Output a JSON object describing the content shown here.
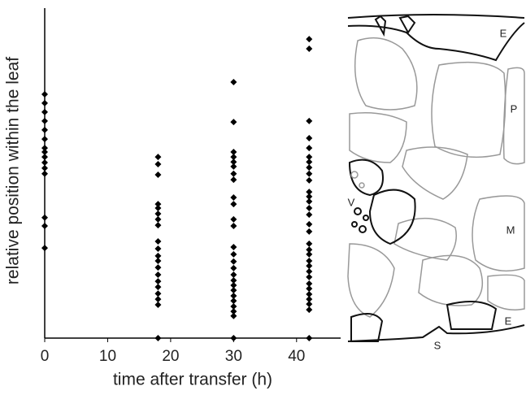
{
  "chart_data": {
    "type": "scatter",
    "xlabel": "time after transfer (h)",
    "ylabel": "relative position within the leaf",
    "xlim": [
      0,
      47
    ],
    "xticks": [
      0,
      10,
      20,
      30,
      40
    ],
    "ylim": [
      0,
      1
    ],
    "series": [
      {
        "color": "#000000",
        "x": [
          0,
          0,
          0,
          0,
          0,
          0,
          0,
          0,
          0,
          0,
          0,
          0,
          0,
          0,
          0,
          18,
          18,
          18,
          18,
          18,
          18,
          18,
          18,
          18,
          18,
          18,
          18,
          18,
          18,
          18,
          18,
          18,
          18,
          18,
          18,
          30,
          30,
          30,
          30,
          30,
          30,
          30,
          30,
          30,
          30,
          30,
          30,
          30,
          30,
          30,
          30,
          30,
          30,
          30,
          30,
          30,
          30,
          30,
          30,
          30,
          30,
          42,
          42,
          42,
          42,
          42,
          42,
          42,
          42,
          42,
          42,
          42,
          42,
          42,
          42,
          42,
          42,
          42,
          42,
          42,
          42,
          42,
          42,
          42,
          42,
          42,
          42,
          42,
          42,
          42,
          42,
          42
        ],
        "values": [
          0.739,
          0.712,
          0.685,
          0.658,
          0.631,
          0.603,
          0.576,
          0.564,
          0.549,
          0.532,
          0.515,
          0.498,
          0.365,
          0.34,
          0.273,
          0.549,
          0.527,
          0.495,
          0.406,
          0.394,
          0.377,
          0.36,
          0.342,
          0.293,
          0.271,
          0.249,
          0.234,
          0.214,
          0.192,
          0.172,
          0.155,
          0.135,
          0.118,
          0.101,
          0,
          0.776,
          0.655,
          0.564,
          0.549,
          0.534,
          0.52,
          0.498,
          0.48,
          0.426,
          0.406,
          0.36,
          0.34,
          0.276,
          0.254,
          0.232,
          0.212,
          0.192,
          0.175,
          0.16,
          0.145,
          0.128,
          0.113,
          0.096,
          0.081,
          0.067,
          0,
          0.906,
          0.877,
          0.658,
          0.606,
          0.576,
          0.549,
          0.534,
          0.517,
          0.498,
          0.478,
          0.443,
          0.429,
          0.414,
          0.394,
          0.374,
          0.345,
          0.323,
          0.286,
          0.268,
          0.254,
          0.234,
          0.219,
          0.202,
          0.185,
          0.165,
          0.15,
          0.133,
          0.118,
          0.103,
          0.086,
          0
        ]
      }
    ]
  },
  "illustration": {
    "labels": [
      "E",
      "P",
      "V",
      "M",
      "E",
      "S"
    ]
  }
}
